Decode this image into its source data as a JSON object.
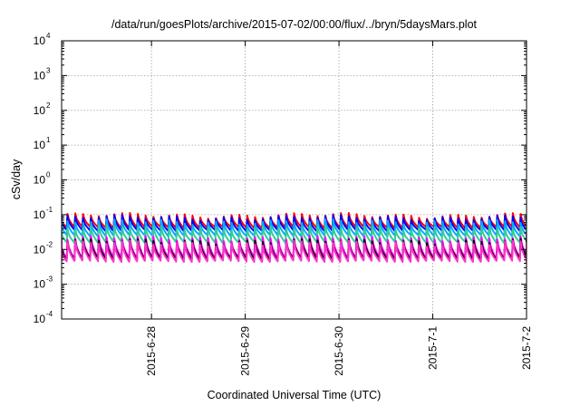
{
  "chart_data": {
    "type": "line",
    "title": "/data/run/goesPlots/archive/2015-07-02/00:00/flux/../bryn/5daysMars.plot",
    "xlabel": "Coordinated Universal Time (UTC)",
    "ylabel": "cSv/day",
    "yscale": "log",
    "ylim": [
      0.0001,
      10000
    ],
    "xlim": [
      "2015-06-27T01:00",
      "2015-07-02T00:00"
    ],
    "grid": true,
    "x_ticks": [
      {
        "date": "2015-06-28",
        "label": "2015-6-28"
      },
      {
        "date": "2015-06-29",
        "label": "2015-6-29"
      },
      {
        "date": "2015-06-30",
        "label": "2015-6-30"
      },
      {
        "date": "2015-07-01",
        "label": "2015-7-1"
      },
      {
        "date": "2015-07-02",
        "label": "2015-7-2"
      }
    ],
    "y_ticks": [
      {
        "value": 0.0001,
        "base": "10",
        "exp": "-4"
      },
      {
        "value": 0.001,
        "base": "10",
        "exp": "-3"
      },
      {
        "value": 0.01,
        "base": "10",
        "exp": "-2"
      },
      {
        "value": 0.1,
        "base": "10",
        "exp": "-1"
      },
      {
        "value": 1,
        "base": "10",
        "exp": "0"
      },
      {
        "value": 10,
        "base": "10",
        "exp": "1"
      },
      {
        "value": 100,
        "base": "10",
        "exp": "2"
      },
      {
        "value": 1000,
        "base": "10",
        "exp": "3"
      },
      {
        "value": 10000,
        "base": "10",
        "exp": "4"
      }
    ],
    "orbit_period_hours": 2.0,
    "series": [
      {
        "color": "#ff0000",
        "peak": 0.095,
        "trough": 0.043
      },
      {
        "color": "#0000ff",
        "peak": 0.082,
        "trough": 0.035
      },
      {
        "color": "#00aaff",
        "peak": 0.062,
        "trough": 0.025
      },
      {
        "color": "#33cc99",
        "peak": 0.042,
        "trough": 0.016
      },
      {
        "color": "#ff00ff",
        "peak": 0.021,
        "trough": 0.0058
      },
      {
        "color": "#000000",
        "peak": 0.017,
        "trough": 0.0052
      },
      {
        "color": "#ff33cc",
        "peak": 0.015,
        "trough": 0.0046
      }
    ]
  }
}
